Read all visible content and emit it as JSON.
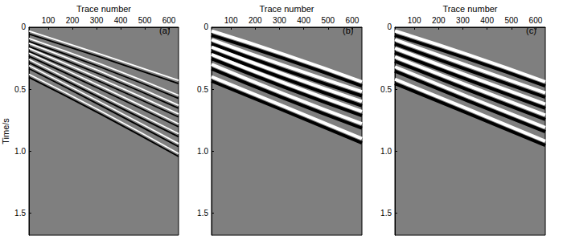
{
  "chart_data": [
    {
      "type": "line",
      "title": "(a)",
      "x_label": "Trace number",
      "y_label": "Time/s",
      "x": [
        20,
        320,
        640
      ],
      "xlim": [
        20,
        640
      ],
      "xticks": [
        100,
        200,
        300,
        400,
        500,
        600
      ],
      "ylim": [
        0,
        1.68
      ],
      "yticks": [
        0,
        0.5,
        {
          "value": 1,
          "label": "1.0"
        },
        1.5
      ],
      "line_style": "thin",
      "series": [
        {
          "color": "#ffffff",
          "values": [
            0.03,
            0.22,
            0.43
          ]
        },
        {
          "color": "#000000",
          "values": [
            0.055,
            0.245,
            0.455
          ]
        },
        {
          "color": "#ffffff",
          "values": [
            0.09,
            0.3,
            0.55
          ]
        },
        {
          "color": "#000000",
          "values": [
            0.115,
            0.325,
            0.575
          ]
        },
        {
          "color": "#ffffff",
          "values": [
            0.13,
            0.36,
            0.63
          ]
        },
        {
          "color": "#000000",
          "values": [
            0.155,
            0.385,
            0.655
          ]
        },
        {
          "color": "#ffffff",
          "values": [
            0.17,
            0.42,
            0.7
          ]
        },
        {
          "color": "#000000",
          "values": [
            0.195,
            0.445,
            0.725
          ]
        },
        {
          "color": "#ffffff",
          "values": [
            0.21,
            0.48,
            0.78
          ]
        },
        {
          "color": "#000000",
          "values": [
            0.235,
            0.505,
            0.805
          ]
        },
        {
          "color": "#ffffff",
          "values": [
            0.26,
            0.55,
            0.86
          ]
        },
        {
          "color": "#000000",
          "values": [
            0.285,
            0.575,
            0.885
          ]
        },
        {
          "color": "#ffffff",
          "values": [
            0.31,
            0.61,
            0.94
          ]
        },
        {
          "color": "#000000",
          "values": [
            0.335,
            0.635,
            0.965
          ]
        },
        {
          "color": "#ffffff",
          "values": [
            0.38,
            0.68,
            1.02
          ]
        },
        {
          "color": "#000000",
          "values": [
            0.405,
            0.705,
            1.045
          ]
        }
      ]
    },
    {
      "type": "line",
      "title": "(b)",
      "x_label": "Trace number",
      "x": [
        20,
        320,
        640
      ],
      "xlim": [
        20,
        640
      ],
      "xticks": [
        100,
        200,
        300,
        400,
        500,
        600
      ],
      "ylim": [
        0,
        1.68
      ],
      "yticks": [
        0,
        0.5,
        {
          "value": 1,
          "label": "1.0"
        },
        1.5
      ],
      "line_style": "thick",
      "series": [
        {
          "color": "#ffffff",
          "values": [
            0.03,
            0.22,
            0.44
          ]
        },
        {
          "color": "#000000",
          "values": [
            0.065,
            0.255,
            0.475
          ]
        },
        {
          "color": "#ffffff",
          "values": [
            0.1,
            0.31,
            0.52
          ]
        },
        {
          "color": "#000000",
          "values": [
            0.135,
            0.345,
            0.555
          ]
        },
        {
          "color": "#ffffff",
          "values": [
            0.16,
            0.38,
            0.6
          ]
        },
        {
          "color": "#000000",
          "values": [
            0.195,
            0.415,
            0.635
          ]
        },
        {
          "color": "#ffffff",
          "values": [
            0.22,
            0.45,
            0.68
          ]
        },
        {
          "color": "#000000",
          "values": [
            0.255,
            0.485,
            0.715
          ]
        },
        {
          "color": "#ffffff",
          "values": [
            0.3,
            0.54,
            0.78
          ]
        },
        {
          "color": "#000000",
          "values": [
            0.335,
            0.575,
            0.815
          ]
        },
        {
          "color": "#ffffff",
          "values": [
            0.4,
            0.64,
            0.9
          ]
        },
        {
          "color": "#000000",
          "values": [
            0.435,
            0.675,
            0.935
          ]
        }
      ]
    },
    {
      "type": "line",
      "title": "(c)",
      "x_label": "Trace number",
      "x": [
        20,
        320,
        640
      ],
      "xlim": [
        20,
        640
      ],
      "xticks": [
        100,
        200,
        300,
        400,
        500,
        600
      ],
      "ylim": [
        0,
        1.68
      ],
      "yticks": [
        0,
        0.5,
        {
          "value": 1,
          "label": "1.0"
        },
        1.5
      ],
      "line_style": "thick",
      "series": [
        {
          "color": "#ffffff",
          "values": [
            0.03,
            0.22,
            0.44
          ]
        },
        {
          "color": "#000000",
          "values": [
            0.065,
            0.255,
            0.475
          ]
        },
        {
          "color": "#ffffff",
          "values": [
            0.1,
            0.31,
            0.53
          ]
        },
        {
          "color": "#000000",
          "values": [
            0.135,
            0.345,
            0.565
          ]
        },
        {
          "color": "#ffffff",
          "values": [
            0.17,
            0.39,
            0.62
          ]
        },
        {
          "color": "#000000",
          "values": [
            0.205,
            0.425,
            0.655
          ]
        },
        {
          "color": "#ffffff",
          "values": [
            0.24,
            0.47,
            0.71
          ]
        },
        {
          "color": "#000000",
          "values": [
            0.275,
            0.505,
            0.745
          ]
        },
        {
          "color": "#ffffff",
          "values": [
            0.32,
            0.56,
            0.81
          ]
        },
        {
          "color": "#000000",
          "values": [
            0.355,
            0.595,
            0.845
          ]
        },
        {
          "color": "#ffffff",
          "values": [
            0.42,
            0.66,
            0.92
          ]
        },
        {
          "color": "#000000",
          "values": [
            0.455,
            0.695,
            0.955
          ]
        }
      ]
    }
  ]
}
